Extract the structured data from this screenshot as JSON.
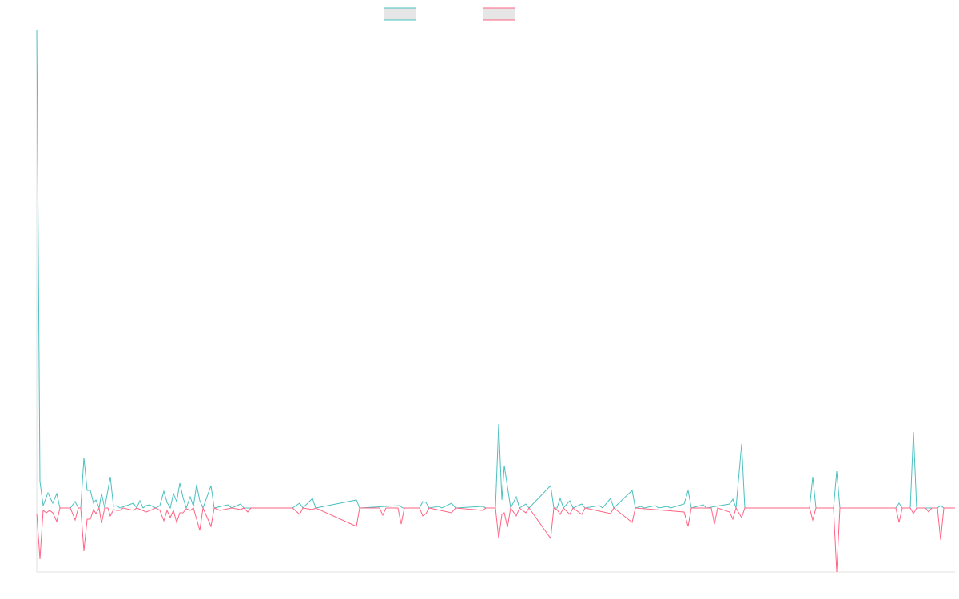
{
  "chart_data": {
    "type": "line",
    "title": "",
    "xlabel": "",
    "ylabel": "",
    "xlim": [
      0,
      287.25
    ],
    "ylim": [
      -80,
      599
    ],
    "grid": false,
    "legend_position": "top-center",
    "series": [
      {
        "name": "",
        "color": "#4bc0c0",
        "points": [
          [
            0,
            599
          ],
          [
            1,
            33
          ],
          [
            2,
            3
          ],
          [
            3.5,
            19
          ],
          [
            5,
            6
          ],
          [
            6.25,
            18
          ],
          [
            7.25,
            0
          ],
          [
            10.5,
            0
          ],
          [
            12,
            8
          ],
          [
            13,
            0
          ],
          [
            13.75,
            0
          ],
          [
            14.75,
            63
          ],
          [
            15.75,
            22
          ],
          [
            16.75,
            22
          ],
          [
            17.75,
            6
          ],
          [
            18.5,
            10
          ],
          [
            19.5,
            0
          ],
          [
            20.25,
            18
          ],
          [
            21.25,
            0
          ],
          [
            23,
            39
          ],
          [
            24,
            2
          ],
          [
            25,
            3
          ],
          [
            26,
            0
          ],
          [
            30.25,
            6
          ],
          [
            31.25,
            0
          ],
          [
            32.25,
            9
          ],
          [
            33.25,
            0
          ],
          [
            34.25,
            3
          ],
          [
            35.25,
            4
          ],
          [
            37.25,
            0
          ],
          [
            38.5,
            3
          ],
          [
            39.75,
            21
          ],
          [
            40.75,
            7
          ],
          [
            41.75,
            0
          ],
          [
            42.75,
            18
          ],
          [
            43.75,
            8
          ],
          [
            44.75,
            31
          ],
          [
            45.75,
            13
          ],
          [
            46.75,
            0
          ],
          [
            48,
            14
          ],
          [
            49,
            2
          ],
          [
            50,
            29
          ],
          [
            51,
            9
          ],
          [
            52,
            0
          ],
          [
            54.5,
            28
          ],
          [
            55.5,
            0
          ],
          [
            59.75,
            4
          ],
          [
            61,
            0
          ],
          [
            63.75,
            5
          ],
          [
            64.75,
            0
          ],
          [
            80,
            0
          ],
          [
            82.25,
            6
          ],
          [
            83.25,
            0
          ],
          [
            86.25,
            12
          ],
          [
            87.25,
            0
          ],
          [
            100,
            10
          ],
          [
            101,
            0
          ],
          [
            113.5,
            3
          ],
          [
            114.5,
            0
          ],
          [
            119.75,
            0
          ],
          [
            120.75,
            8
          ],
          [
            121.75,
            7
          ],
          [
            122.75,
            0
          ],
          [
            125.75,
            2
          ],
          [
            126.75,
            0
          ],
          [
            129.75,
            6
          ],
          [
            131,
            0
          ],
          [
            139.5,
            2
          ],
          [
            140.5,
            0
          ],
          [
            143.5,
            0
          ],
          [
            144.5,
            105
          ],
          [
            145.5,
            10
          ],
          [
            146.25,
            53
          ],
          [
            148.25,
            0
          ],
          [
            150,
            14
          ],
          [
            151,
            0
          ],
          [
            153,
            5
          ],
          [
            154,
            0
          ],
          [
            160.75,
            28
          ],
          [
            161.75,
            0
          ],
          [
            162.75,
            0
          ],
          [
            163.75,
            12
          ],
          [
            164.75,
            0
          ],
          [
            166.75,
            9
          ],
          [
            167.75,
            0
          ],
          [
            170.5,
            5
          ],
          [
            171.5,
            0
          ],
          [
            176,
            3
          ],
          [
            177,
            0
          ],
          [
            179.5,
            12
          ],
          [
            180.5,
            0
          ],
          [
            186.25,
            22
          ],
          [
            187.25,
            0
          ],
          [
            189,
            2
          ],
          [
            190,
            0
          ],
          [
            193.5,
            3
          ],
          [
            194.5,
            0
          ],
          [
            197.25,
            2
          ],
          [
            198.25,
            0
          ],
          [
            202.5,
            5
          ],
          [
            203.75,
            22
          ],
          [
            204.75,
            0
          ],
          [
            208.5,
            4
          ],
          [
            209.5,
            0
          ],
          [
            216.75,
            5
          ],
          [
            217.75,
            11
          ],
          [
            218.75,
            0
          ],
          [
            220.5,
            80
          ],
          [
            221.5,
            0
          ],
          [
            241.75,
            0
          ],
          [
            242.75,
            39
          ],
          [
            243.75,
            0
          ],
          [
            249.25,
            0
          ],
          [
            250.25,
            46
          ],
          [
            251.25,
            0
          ],
          [
            268.75,
            0
          ],
          [
            269.75,
            6
          ],
          [
            270.75,
            0
          ],
          [
            273.25,
            0
          ],
          [
            274.25,
            95
          ],
          [
            275.25,
            0
          ],
          [
            281.75,
            0
          ],
          [
            282.75,
            3
          ],
          [
            283.75,
            0
          ],
          [
            287.25,
            0
          ]
        ]
      },
      {
        "name": "",
        "color": "#ff6384",
        "points": [
          [
            0,
            -7
          ],
          [
            1,
            -64
          ],
          [
            2,
            -3
          ],
          [
            3,
            -6
          ],
          [
            4,
            -3
          ],
          [
            5,
            -6
          ],
          [
            6.25,
            -17
          ],
          [
            7.25,
            0
          ],
          [
            10.5,
            0
          ],
          [
            12,
            -15
          ],
          [
            13,
            0
          ],
          [
            13.75,
            0
          ],
          [
            14.75,
            -54
          ],
          [
            15.75,
            -14
          ],
          [
            16.75,
            -14
          ],
          [
            17.75,
            -2
          ],
          [
            18.5,
            -7
          ],
          [
            19.5,
            0
          ],
          [
            20.25,
            -19
          ],
          [
            21.25,
            0
          ],
          [
            22.25,
            0
          ],
          [
            23,
            -10
          ],
          [
            24,
            -2
          ],
          [
            25,
            -3
          ],
          [
            26,
            -3
          ],
          [
            27,
            0
          ],
          [
            30.25,
            -3
          ],
          [
            31.25,
            0
          ],
          [
            34.25,
            -5
          ],
          [
            37.25,
            0
          ],
          [
            38.5,
            -3
          ],
          [
            39.75,
            -16
          ],
          [
            40.75,
            -3
          ],
          [
            41.75,
            -12
          ],
          [
            42.75,
            -3
          ],
          [
            43.75,
            -18
          ],
          [
            44.75,
            -6
          ],
          [
            45.75,
            -6
          ],
          [
            46.75,
            -1
          ],
          [
            48,
            -3
          ],
          [
            49,
            0
          ],
          [
            51,
            -28
          ],
          [
            52,
            0
          ],
          [
            54.5,
            -23
          ],
          [
            55.5,
            0
          ],
          [
            57.25,
            -3
          ],
          [
            61,
            0
          ],
          [
            63.75,
            -2
          ],
          [
            64.75,
            0
          ],
          [
            66,
            -5
          ],
          [
            67,
            0
          ],
          [
            80,
            0
          ],
          [
            82.25,
            -8
          ],
          [
            83.25,
            0
          ],
          [
            86.25,
            -2
          ],
          [
            87.25,
            0
          ],
          [
            100,
            -23
          ],
          [
            101,
            0
          ],
          [
            107.25,
            0
          ],
          [
            108.25,
            -9
          ],
          [
            109.25,
            0
          ],
          [
            113,
            0
          ],
          [
            114,
            -20
          ],
          [
            115,
            0
          ],
          [
            119.75,
            0
          ],
          [
            120.75,
            -10
          ],
          [
            121.75,
            -7
          ],
          [
            122.75,
            0
          ],
          [
            129.75,
            -6
          ],
          [
            131,
            0
          ],
          [
            139.5,
            -3
          ],
          [
            140.5,
            0
          ],
          [
            143.5,
            0
          ],
          [
            144.5,
            -38
          ],
          [
            145.5,
            -8
          ],
          [
            146.25,
            -6
          ],
          [
            147.25,
            -24
          ],
          [
            148.25,
            0
          ],
          [
            150,
            -10
          ],
          [
            151,
            0
          ],
          [
            153,
            -6
          ],
          [
            154,
            0
          ],
          [
            160.75,
            -38
          ],
          [
            161.75,
            0
          ],
          [
            162.75,
            -2
          ],
          [
            163.75,
            -8
          ],
          [
            164.75,
            0
          ],
          [
            166.75,
            -8
          ],
          [
            167.75,
            0
          ],
          [
            170.5,
            -8
          ],
          [
            171.5,
            0
          ],
          [
            179.5,
            -7
          ],
          [
            180.5,
            0
          ],
          [
            186.25,
            -18
          ],
          [
            187.25,
            0
          ],
          [
            202.5,
            -5
          ],
          [
            203.75,
            -23
          ],
          [
            204.75,
            0
          ],
          [
            211,
            0
          ],
          [
            212,
            -20
          ],
          [
            213,
            0
          ],
          [
            216.75,
            -5
          ],
          [
            217.75,
            -14
          ],
          [
            218.75,
            0
          ],
          [
            220.5,
            -12
          ],
          [
            221.5,
            0
          ],
          [
            241.75,
            0
          ],
          [
            242.75,
            -15
          ],
          [
            243.75,
            0
          ],
          [
            249.25,
            0
          ],
          [
            250.25,
            -80
          ],
          [
            251.25,
            0
          ],
          [
            268.75,
            0
          ],
          [
            269.75,
            -18
          ],
          [
            270.75,
            0
          ],
          [
            273.25,
            0
          ],
          [
            274.25,
            -7
          ],
          [
            275.25,
            0
          ],
          [
            278,
            0
          ],
          [
            279,
            -5
          ],
          [
            280,
            0
          ],
          [
            281.75,
            0
          ],
          [
            282.75,
            -40
          ],
          [
            283.75,
            0
          ],
          [
            287.25,
            0
          ]
        ]
      }
    ]
  }
}
